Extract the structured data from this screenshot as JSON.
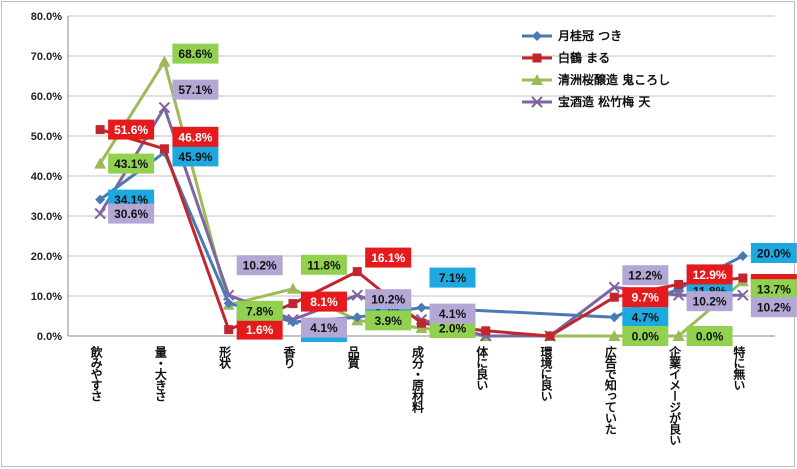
{
  "chart_data": {
    "type": "line",
    "categories": [
      "飲みやすさ",
      "量・大きさ",
      "形状",
      "香り",
      "品質",
      "成分・原材料",
      "体に良い",
      "環境に良い",
      "広告で知っていた",
      "企業イメージが良い",
      "特に無い"
    ],
    "y_ticks": [
      "0.0%",
      "10.0%",
      "20.0%",
      "30.0%",
      "40.0%",
      "50.0%",
      "60.0%",
      "70.0%",
      "80.0%"
    ],
    "ylim": [
      0,
      80
    ],
    "grid": true,
    "legend_position": "top-right",
    "series": [
      {
        "name": "月桂冠 つき",
        "color": "#4a7ab5",
        "marker": "diamond",
        "label_bg": "#1ea8e0",
        "label_color": "#111111",
        "values": [
          34.1,
          45.9,
          8.2,
          3.5,
          4.7,
          7.1,
          null,
          null,
          4.7,
          11.8,
          20.0
        ],
        "labels": [
          "34.1%",
          "45.9%",
          "8.2%",
          "3.5%",
          "4.7%",
          "7.1%",
          "",
          "",
          "4.7%",
          "11.8%",
          "20.0%"
        ]
      },
      {
        "name": "白鶴 まる",
        "color": "#c0262d",
        "marker": "square",
        "label_bg": "#e41a1c",
        "label_color": "#ffffff",
        "values": [
          51.6,
          46.8,
          1.6,
          8.1,
          16.1,
          3.2,
          1.3,
          0.0,
          9.7,
          12.9,
          14.5
        ],
        "labels": [
          "51.6%",
          "46.8%",
          "1.6%",
          "8.1%",
          "16.1%",
          "3.2%",
          "",
          "",
          "9.7%",
          "12.9%",
          "14.5%"
        ]
      },
      {
        "name": "清洲桜醸造 鬼ころし",
        "color": "#9bbb59",
        "marker": "triangle",
        "label_bg": "#92d050",
        "label_color": "#111111",
        "values": [
          43.1,
          68.6,
          7.8,
          11.8,
          3.9,
          2.0,
          0.0,
          0.0,
          0.0,
          0.0,
          13.7
        ],
        "labels": [
          "43.1%",
          "68.6%",
          "7.8%",
          "11.8%",
          "3.9%",
          "2.0%",
          "",
          "",
          "0.0%",
          "0.0%",
          "13.7%"
        ]
      },
      {
        "name": "宝酒造 松竹梅 天",
        "color": "#7f64a2",
        "marker": "x",
        "label_bg": "#b4a7d6",
        "label_color": "#111111",
        "values": [
          30.6,
          57.1,
          10.2,
          4.1,
          10.2,
          4.1,
          0.0,
          0.0,
          12.2,
          10.2,
          10.2
        ],
        "labels": [
          "30.6%",
          "57.1%",
          "10.2%",
          "4.1%",
          "10.2%",
          "4.1%",
          "",
          "",
          "12.2%",
          "10.2%",
          "10.2%"
        ]
      }
    ]
  }
}
